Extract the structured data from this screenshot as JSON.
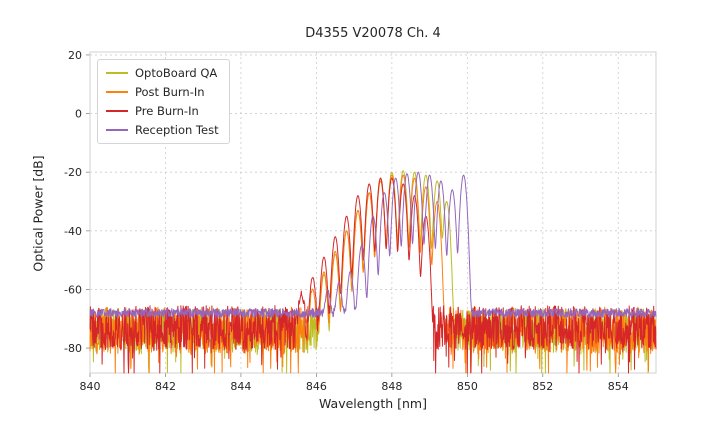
{
  "chart_data": {
    "type": "line",
    "title": "D4355 V20078 Ch. 4",
    "xlabel": "Wavelength [nm]",
    "ylabel": "Optical Power [dB]",
    "xlim": [
      840,
      855
    ],
    "ylim": [
      -88.5,
      21
    ],
    "xticks": [
      840,
      842,
      844,
      846,
      848,
      850,
      852,
      854
    ],
    "yticks": [
      20,
      0,
      -20,
      -40,
      -60,
      -80
    ],
    "grid": true,
    "legend_position": "upper-left",
    "series": [
      {
        "name": "OptoBoard QA",
        "color": "#bcbd22",
        "noise_floor_db": -74,
        "noise_jitter_db": 15,
        "spike_prob": 0.07,
        "spike_depth_db": 13,
        "seed": 11,
        "mode_width_nm": 0.06,
        "modes": [
          [
            846.2,
            -55
          ],
          [
            846.5,
            -48
          ],
          [
            846.8,
            -40
          ],
          [
            847.1,
            -33
          ],
          [
            847.4,
            -27
          ],
          [
            847.7,
            -22
          ],
          [
            848.0,
            -20
          ],
          [
            848.3,
            -19.5
          ],
          [
            848.6,
            -20
          ],
          [
            848.9,
            -21
          ],
          [
            849.2,
            -23
          ],
          [
            849.45,
            -30
          ]
        ]
      },
      {
        "name": "Post Burn-In",
        "color": "#ff7f0e",
        "noise_floor_db": -74,
        "noise_jitter_db": 16,
        "spike_prob": 0.08,
        "spike_depth_db": 14,
        "seed": 22,
        "mode_width_nm": 0.06,
        "modes": [
          [
            845.9,
            -60
          ],
          [
            846.2,
            -54
          ],
          [
            846.5,
            -47
          ],
          [
            846.8,
            -40
          ],
          [
            847.1,
            -33
          ],
          [
            847.4,
            -27
          ],
          [
            847.7,
            -23
          ],
          [
            848.0,
            -21
          ],
          [
            848.3,
            -21
          ],
          [
            848.6,
            -22
          ],
          [
            848.9,
            -25
          ],
          [
            849.2,
            -30
          ]
        ]
      },
      {
        "name": "Pre Burn-In",
        "color": "#d62728",
        "noise_floor_db": -73,
        "noise_jitter_db": 15,
        "spike_prob": 0.08,
        "spike_depth_db": 14,
        "seed": 33,
        "mode_width_nm": 0.06,
        "modes": [
          [
            845.6,
            -62
          ],
          [
            845.9,
            -56
          ],
          [
            846.2,
            -49
          ],
          [
            846.5,
            -42
          ],
          [
            846.8,
            -35
          ],
          [
            847.1,
            -28
          ],
          [
            847.4,
            -24
          ],
          [
            847.7,
            -22
          ],
          [
            848.0,
            -22
          ],
          [
            848.3,
            -24
          ],
          [
            848.6,
            -28
          ],
          [
            848.9,
            -35
          ]
        ]
      },
      {
        "name": "Reception Test",
        "color": "#9467bd",
        "noise_floor_db": -68,
        "noise_jitter_db": 3,
        "spike_prob": 0.01,
        "spike_depth_db": 3,
        "seed": 44,
        "mode_width_nm": 0.06,
        "modes": [
          [
            846.3,
            -61
          ],
          [
            846.6,
            -58
          ],
          [
            846.9,
            -54
          ],
          [
            847.2,
            -45
          ],
          [
            847.5,
            -35
          ],
          [
            847.8,
            -27
          ],
          [
            848.1,
            -22
          ],
          [
            848.4,
            -20.5
          ],
          [
            848.7,
            -20
          ],
          [
            849.0,
            -21
          ],
          [
            849.3,
            -23
          ],
          [
            849.6,
            -26
          ],
          [
            849.9,
            -21
          ]
        ]
      }
    ]
  }
}
